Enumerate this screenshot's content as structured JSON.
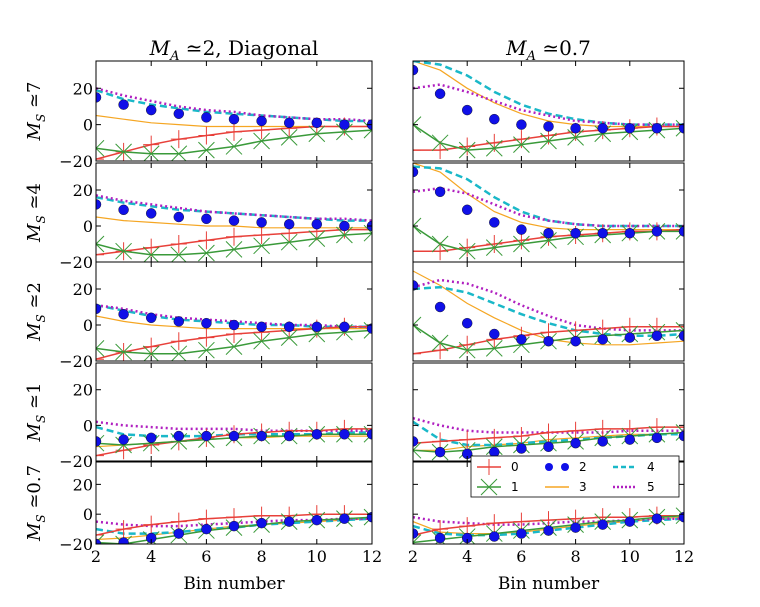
{
  "chart_data": {
    "type": "line",
    "columns": [
      {
        "title": "M_A ≃2,  Diagonal",
        "subscript": "A",
        "rest": " ≃2,  Diagonal"
      },
      {
        "title": "M_A ≃0.7",
        "subscript": "A",
        "rest": " ≃0.7"
      }
    ],
    "rows": [
      {
        "label": "M_S ≃7"
      },
      {
        "label": "M_S ≃4"
      },
      {
        "label": "M_S ≃2"
      },
      {
        "label": "M_S ≃1"
      },
      {
        "label": "M_S ≃0.7"
      }
    ],
    "xlabel": "Bin  number",
    "xlim": [
      2,
      12
    ],
    "ylim": [
      -20,
      35
    ],
    "xticks": [
      2,
      4,
      6,
      8,
      10,
      12
    ],
    "yticks": [
      -20,
      0,
      20
    ],
    "x": [
      2,
      3,
      4,
      5,
      6,
      7,
      8,
      9,
      10,
      11,
      12
    ],
    "legend": [
      {
        "name": "0",
        "color": "#e8403a",
        "style": "line-plus"
      },
      {
        "name": "1",
        "color": "#3a9a3a",
        "style": "line-x"
      },
      {
        "name": "2",
        "color": "#1010e8",
        "style": "circles"
      },
      {
        "name": "3",
        "color": "#f5a623",
        "style": "line"
      },
      {
        "name": "4",
        "color": "#1ab8c8",
        "style": "dashed"
      },
      {
        "name": "5",
        "color": "#b020c0",
        "style": "dotted"
      }
    ],
    "panels": [
      [
        {
          "s0": [
            -19,
            -15,
            -11,
            -8,
            -6,
            -4,
            -3,
            -2,
            -1,
            -1,
            -1
          ],
          "s1": [
            -13,
            -15,
            -16,
            -16,
            -14,
            -12,
            -9,
            -7,
            -5,
            -4,
            -3
          ],
          "s2": [
            15,
            11,
            8,
            6,
            4,
            3,
            2,
            1,
            1,
            0,
            0
          ],
          "s3": [
            5,
            3,
            1,
            0,
            -1,
            -1,
            -1,
            -1,
            -1,
            -1,
            -1
          ],
          "s4": [
            19,
            14,
            11,
            9,
            7,
            6,
            5,
            4,
            3,
            2,
            2
          ],
          "s5": [
            20,
            16,
            13,
            10,
            8,
            7,
            5,
            4,
            3,
            3,
            2
          ]
        },
        {
          "s0": [
            -16,
            -14,
            -12,
            -10,
            -8,
            -6,
            -5,
            -4,
            -3,
            -2,
            -2
          ],
          "s1": [
            -10,
            -14,
            -16,
            -16,
            -15,
            -13,
            -11,
            -9,
            -7,
            -5,
            -4
          ],
          "s2": [
            12,
            9,
            7,
            5,
            4,
            3,
            2,
            1,
            1,
            0,
            0
          ],
          "s3": [
            5,
            3,
            2,
            1,
            0,
            0,
            -1,
            -1,
            -1,
            -1,
            -1
          ],
          "s4": [
            16,
            13,
            11,
            9,
            8,
            7,
            6,
            5,
            4,
            3,
            3
          ],
          "s5": [
            17,
            14,
            12,
            10,
            8,
            7,
            6,
            5,
            4,
            4,
            3
          ]
        },
        {
          "s0": [
            -19,
            -15,
            -12,
            -9,
            -7,
            -5,
            -4,
            -3,
            -2,
            -1,
            -1
          ],
          "s1": [
            -13,
            -15,
            -16,
            -16,
            -14,
            -12,
            -9,
            -7,
            -5,
            -4,
            -3
          ],
          "s2": [
            9,
            6,
            4,
            2,
            1,
            0,
            -1,
            -1,
            -1,
            -1,
            -2
          ],
          "s3": [
            5,
            2,
            0,
            -1,
            -2,
            -2,
            -2,
            -2,
            -2,
            -2,
            -2
          ],
          "s4": [
            11,
            8,
            5,
            3,
            2,
            1,
            0,
            0,
            -1,
            -1,
            -1
          ],
          "s5": [
            11,
            9,
            6,
            4,
            3,
            2,
            1,
            0,
            0,
            -1,
            -1
          ]
        },
        {
          "s0": [
            -17,
            -14,
            -11,
            -9,
            -7,
            -5,
            -4,
            -3,
            -3,
            -2,
            -2
          ],
          "s1": [
            -10,
            -11,
            -10,
            -9,
            -8,
            -7,
            -6,
            -6,
            -5,
            -5,
            -5
          ],
          "s2": [
            -9,
            -8,
            -7,
            -6,
            -6,
            -6,
            -6,
            -6,
            -5,
            -5,
            -5
          ],
          "s3": [
            -12,
            -11,
            -10,
            -9,
            -8,
            -7,
            -7,
            -6,
            -6,
            -6,
            -6
          ],
          "s4": [
            -1,
            -5,
            -6,
            -6,
            -6,
            -5,
            -5,
            -5,
            -5,
            -4,
            -4
          ],
          "s5": [
            2,
            0,
            -1,
            -2,
            -2,
            -2,
            -3,
            -3,
            -3,
            -3,
            -3
          ]
        },
        {
          "s0": [
            -14,
            -10,
            -7,
            -5,
            -3,
            -2,
            -1,
            -1,
            0,
            0,
            0
          ],
          "s1": [
            -19,
            -20,
            -17,
            -14,
            -11,
            -9,
            -7,
            -5,
            -4,
            -3,
            -2
          ],
          "s2": [
            -20,
            -19,
            -16,
            -13,
            -10,
            -8,
            -6,
            -5,
            -4,
            -3,
            -2
          ],
          "s3": [
            -17,
            -16,
            -14,
            -12,
            -10,
            -8,
            -7,
            -6,
            -5,
            -4,
            -3
          ],
          "s4": [
            -10,
            -13,
            -13,
            -12,
            -10,
            -9,
            -7,
            -6,
            -5,
            -4,
            -3
          ],
          "s5": [
            -5,
            -7,
            -8,
            -8,
            -7,
            -6,
            -5,
            -4,
            -4,
            -3,
            -3
          ]
        }
      ],
      [
        {
          "s0": [
            -14,
            -14,
            -12,
            -10,
            -8,
            -6,
            -4,
            -3,
            -2,
            -1,
            -1
          ],
          "s1": [
            0,
            -10,
            -14,
            -13,
            -11,
            -9,
            -7,
            -5,
            -4,
            -3,
            -2
          ],
          "s2": [
            30,
            17,
            8,
            3,
            0,
            -1,
            -2,
            -2,
            -2,
            -2,
            -2
          ],
          "s3": [
            35,
            30,
            20,
            12,
            6,
            2,
            0,
            -1,
            -1,
            -1,
            -1
          ],
          "s4": [
            35,
            33,
            27,
            18,
            11,
            6,
            3,
            1,
            0,
            0,
            0
          ],
          "s5": [
            20,
            22,
            18,
            13,
            8,
            5,
            2,
            1,
            0,
            0,
            0
          ]
        },
        {
          "s0": [
            -14,
            -14,
            -12,
            -10,
            -8,
            -6,
            -5,
            -4,
            -3,
            -3,
            -2
          ],
          "s1": [
            0,
            -10,
            -14,
            -12,
            -10,
            -8,
            -6,
            -5,
            -4,
            -3,
            -3
          ],
          "s2": [
            30,
            19,
            9,
            2,
            -2,
            -4,
            -4,
            -4,
            -4,
            -3,
            -3
          ],
          "s3": [
            35,
            30,
            18,
            8,
            2,
            -1,
            -2,
            -2,
            -2,
            -2,
            -2
          ],
          "s4": [
            33,
            32,
            26,
            16,
            8,
            3,
            1,
            0,
            0,
            0,
            0
          ],
          "s5": [
            19,
            21,
            18,
            12,
            6,
            3,
            1,
            0,
            0,
            0,
            0
          ]
        },
        {
          "s0": [
            -16,
            -14,
            -11,
            -8,
            -6,
            -4,
            -3,
            -2,
            -1,
            -1,
            -1
          ],
          "s1": [
            0,
            -10,
            -14,
            -13,
            -11,
            -9,
            -7,
            -6,
            -5,
            -4,
            -3
          ],
          "s2": [
            22,
            10,
            1,
            -5,
            -8,
            -9,
            -9,
            -8,
            -7,
            -6,
            -6
          ],
          "s3": [
            30,
            22,
            12,
            4,
            -3,
            -8,
            -10,
            -11,
            -11,
            -10,
            -9
          ],
          "s4": [
            20,
            21,
            18,
            12,
            6,
            1,
            -3,
            -5,
            -6,
            -6,
            -5
          ],
          "s5": [
            21,
            25,
            23,
            18,
            11,
            5,
            0,
            -2,
            -3,
            -3,
            -3
          ]
        },
        {
          "s0": [
            -10,
            -9,
            -8,
            -7,
            -6,
            -4,
            -3,
            -2,
            -2,
            -1,
            -1
          ],
          "s1": [
            -14,
            -15,
            -14,
            -12,
            -11,
            -10,
            -9,
            -7,
            -6,
            -5,
            -4
          ],
          "s2": [
            -9,
            -15,
            -16,
            -15,
            -13,
            -12,
            -10,
            -9,
            -8,
            -7,
            -6
          ],
          "s3": [
            -14,
            -14,
            -12,
            -11,
            -10,
            -8,
            -7,
            -6,
            -5,
            -5,
            -4
          ],
          "s4": [
            2,
            -8,
            -11,
            -11,
            -10,
            -9,
            -8,
            -7,
            -6,
            -5,
            -5
          ],
          "s5": [
            4,
            0,
            -3,
            -4,
            -4,
            -4,
            -4,
            -4,
            -3,
            -3,
            -3
          ]
        },
        {
          "s0": [
            -14,
            -10,
            -8,
            -6,
            -5,
            -4,
            -3,
            -2,
            -2,
            -1,
            -1
          ],
          "s1": [
            -19,
            -17,
            -15,
            -13,
            -11,
            -9,
            -7,
            -5,
            -4,
            -2,
            -1
          ],
          "s2": [
            -13,
            -16,
            -16,
            -15,
            -13,
            -11,
            -9,
            -7,
            -5,
            -3,
            -2
          ],
          "s3": [
            -5,
            -12,
            -13,
            -13,
            -12,
            -10,
            -8,
            -6,
            -5,
            -3,
            -2
          ],
          "s4": [
            -8,
            -13,
            -14,
            -14,
            -13,
            -11,
            -9,
            -7,
            -5,
            -4,
            -3
          ],
          "s5": [
            -2,
            -5,
            -6,
            -7,
            -7,
            -6,
            -5,
            -5,
            -4,
            -3,
            -3
          ]
        }
      ]
    ]
  }
}
